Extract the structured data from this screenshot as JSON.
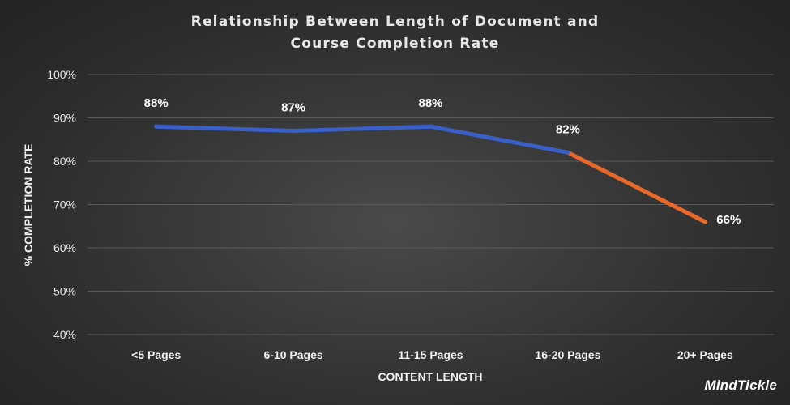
{
  "chart_data": {
    "type": "line",
    "title_lines": [
      "Relationship Between Length of Document and",
      "Course Completion Rate"
    ],
    "xlabel": "CONTENT LENGTH",
    "ylabel": "% COMPLETION RATE",
    "categories": [
      "<5 Pages",
      "6-10 Pages",
      "11-15 Pages",
      "16-20 Pages",
      "20+ Pages"
    ],
    "values": [
      88,
      87,
      88,
      82,
      66
    ],
    "data_labels": [
      "88%",
      "87%",
      "88%",
      "82%",
      "66%"
    ],
    "ylim": [
      40,
      100
    ],
    "yticks": [
      40,
      50,
      60,
      70,
      80,
      90,
      100
    ],
    "ytick_labels": [
      "40%",
      "50%",
      "60%",
      "70%",
      "80%",
      "90%",
      "100%"
    ],
    "grid": true,
    "segment_colors": {
      "primary": "#3a5fc8",
      "highlight": "#e8692a"
    },
    "highlight_from_index": 3
  },
  "branding": {
    "logo_text": "MindTickle"
  }
}
